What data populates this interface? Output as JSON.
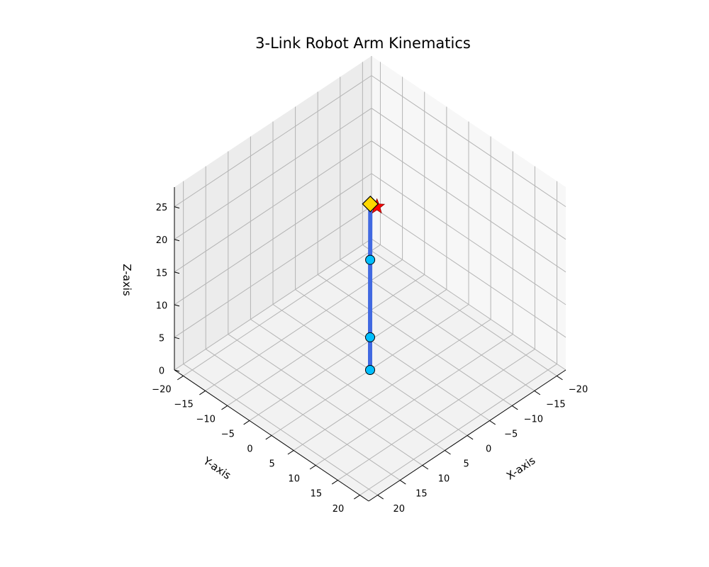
{
  "chart_data": {
    "type": "scatter3d",
    "title": "3-Link Robot Arm Kinematics",
    "xlabel": "X-axis",
    "ylabel": "Y-axis",
    "zlabel": "Z-axis",
    "xlim": [
      -22,
      22
    ],
    "ylim": [
      -22,
      22
    ],
    "zlim": [
      0,
      28
    ],
    "xticks": [
      -20,
      -15,
      -10,
      -5,
      0,
      5,
      10,
      15,
      20
    ],
    "yticks": [
      -20,
      -15,
      -10,
      -5,
      0,
      5,
      10,
      15,
      20
    ],
    "zticks": [
      0,
      5,
      10,
      15,
      20,
      25
    ],
    "grid": true,
    "arm": {
      "points": [
        {
          "x": 0,
          "y": 0,
          "z": 0
        },
        {
          "x": 0,
          "y": 0,
          "z": 5
        },
        {
          "x": -1.5,
          "y": -1.5,
          "z": 15.5
        },
        {
          "x": -3.2,
          "y": -3.2,
          "z": 22.5
        }
      ],
      "link_color": "#4169e1",
      "joint_color": "#00bfff",
      "end_effector_color": "#ffd700"
    },
    "target": {
      "x": -3.5,
      "y": -2,
      "z": 22.5,
      "color": "#ff0000"
    }
  }
}
